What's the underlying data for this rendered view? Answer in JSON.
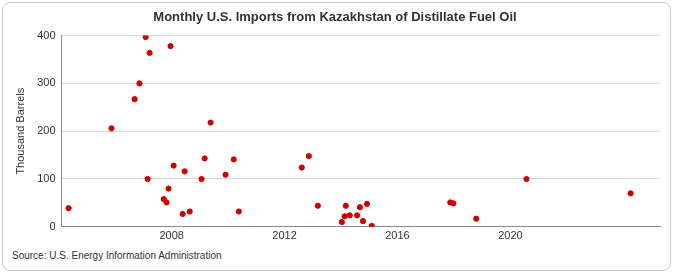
{
  "chart_data": {
    "type": "scatter",
    "title": "Monthly U.S. Imports from Kazakhstan of Distillate Fuel Oil",
    "y_label": "Thousand Barrels",
    "annotation": "Source: U.S. Energy Information Administration",
    "x": [
      2004.35,
      2005.87,
      2006.69,
      2006.86,
      2007.08,
      2007.15,
      2007.22,
      2007.72,
      2007.82,
      2007.89,
      2007.96,
      2008.07,
      2008.39,
      2008.46,
      2008.64,
      2009.06,
      2009.17,
      2009.38,
      2009.91,
      2010.2,
      2010.38,
      2012.61,
      2012.86,
      2013.18,
      2014.03,
      2014.13,
      2014.17,
      2014.31,
      2014.57,
      2014.67,
      2014.78,
      2014.92,
      2015.09,
      2017.87,
      2017.98,
      2018.79,
      2020.57,
      2024.26
    ],
    "values": [
      39,
      206,
      267,
      300,
      397,
      100,
      364,
      58,
      51,
      80,
      378,
      128,
      27,
      116,
      32,
      100,
      143,
      218,
      109,
      141,
      32,
      124,
      148,
      44,
      10,
      22,
      44,
      24,
      24,
      41,
      12,
      48,
      2,
      51,
      49,
      17,
      100,
      70
    ],
    "color": "#cc0000",
    "marker": "circle",
    "xlim": [
      2004.1,
      2025.3
    ],
    "xticks": [
      2008,
      2012,
      2016,
      2020
    ],
    "ylim": [
      0,
      400
    ],
    "yticks": [
      0,
      100,
      200,
      300,
      400
    ],
    "grid": "y"
  }
}
